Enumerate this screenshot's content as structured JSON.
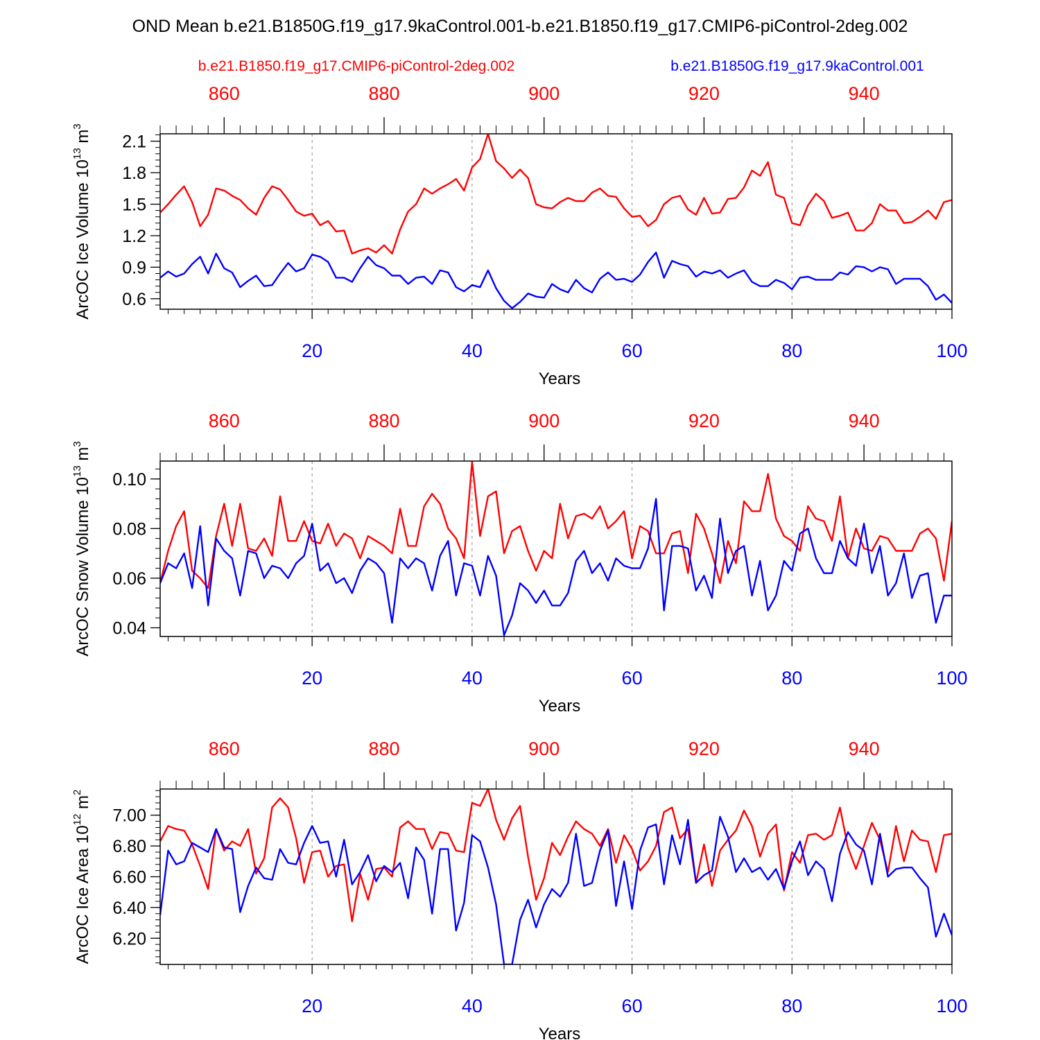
{
  "title": "OND Mean b.e21.B1850G.f19_g17.9kaControl.001-b.e21.B1850.f19_g17.CMIP6-piControl-2deg.002",
  "colors": {
    "red": "#ff0000",
    "blue": "#0000ff",
    "axis": "#000000",
    "grid": "#888888"
  },
  "chart_data": [
    {
      "type": "line",
      "ylabel": "ArcOC Ice Volume 10",
      "ylabel_sup": "13",
      "ylabel_unit": " m",
      "ylabel_unit_sup": "3",
      "xlabel": "Years",
      "ylim": [
        0.5,
        2.17
      ],
      "yticks": [
        0.6,
        0.9,
        1.2,
        1.5,
        1.8,
        2.1
      ],
      "yticklabels": [
        "0.6",
        "0.9",
        "1.2",
        "1.5",
        "1.8",
        "2.1"
      ],
      "yminor_step": 0.06,
      "xlim": [
        1,
        100
      ],
      "xticks": [
        20,
        40,
        60,
        80,
        100
      ],
      "xticklabels": [
        "20",
        "40",
        "60",
        "80",
        "100"
      ],
      "top_xticks": [
        860,
        880,
        900,
        920,
        940
      ],
      "top_xticklabels": [
        "860",
        "880",
        "900",
        "920",
        "940"
      ],
      "top_offset": 851,
      "grid_x": [
        20,
        40,
        60,
        80
      ],
      "legend": [
        "b.e21.B1850.f19_g17.CMIP6-piControl-2deg.002",
        "b.e21.B1850G.f19_g17.9kaControl.001"
      ],
      "series": [
        {
          "name": "b.e21.B1850.f19_g17.CMIP6-piControl-2deg.002",
          "color": "red",
          "values": [
            1.42,
            1.5,
            1.59,
            1.67,
            1.52,
            1.29,
            1.4,
            1.65,
            1.63,
            1.58,
            1.54,
            1.46,
            1.4,
            1.56,
            1.67,
            1.64,
            1.54,
            1.43,
            1.39,
            1.41,
            1.3,
            1.34,
            1.24,
            1.25,
            1.03,
            1.06,
            1.08,
            1.04,
            1.11,
            1.03,
            1.26,
            1.43,
            1.5,
            1.65,
            1.6,
            1.65,
            1.69,
            1.74,
            1.63,
            1.85,
            1.93,
            2.17,
            1.91,
            1.84,
            1.75,
            1.83,
            1.75,
            1.5,
            1.47,
            1.46,
            1.52,
            1.56,
            1.53,
            1.53,
            1.61,
            1.65,
            1.58,
            1.57,
            1.46,
            1.38,
            1.39,
            1.29,
            1.35,
            1.5,
            1.56,
            1.58,
            1.45,
            1.4,
            1.56,
            1.41,
            1.42,
            1.55,
            1.56,
            1.66,
            1.82,
            1.77,
            1.9,
            1.59,
            1.56,
            1.32,
            1.3,
            1.49,
            1.6,
            1.53,
            1.37,
            1.39,
            1.42,
            1.25,
            1.25,
            1.32,
            1.5,
            1.44,
            1.44,
            1.32,
            1.33,
            1.38,
            1.44,
            1.36,
            1.52,
            1.54
          ]
        },
        {
          "name": "b.e21.B1850G.f19_g17.9kaControl.001",
          "color": "blue",
          "values": [
            0.8,
            0.86,
            0.81,
            0.84,
            0.93,
            1.0,
            0.84,
            1.03,
            0.89,
            0.85,
            0.71,
            0.77,
            0.82,
            0.72,
            0.73,
            0.84,
            0.94,
            0.86,
            0.89,
            1.02,
            1.0,
            0.95,
            0.8,
            0.8,
            0.76,
            0.89,
            1.0,
            0.92,
            0.89,
            0.82,
            0.82,
            0.74,
            0.8,
            0.81,
            0.74,
            0.87,
            0.85,
            0.71,
            0.67,
            0.73,
            0.71,
            0.87,
            0.7,
            0.58,
            0.51,
            0.57,
            0.65,
            0.62,
            0.61,
            0.74,
            0.69,
            0.66,
            0.78,
            0.7,
            0.66,
            0.79,
            0.85,
            0.78,
            0.79,
            0.76,
            0.83,
            0.95,
            1.04,
            0.8,
            0.96,
            0.93,
            0.91,
            0.81,
            0.86,
            0.84,
            0.87,
            0.8,
            0.84,
            0.87,
            0.76,
            0.72,
            0.72,
            0.78,
            0.75,
            0.69,
            0.8,
            0.81,
            0.78,
            0.78,
            0.78,
            0.85,
            0.83,
            0.91,
            0.9,
            0.86,
            0.9,
            0.88,
            0.74,
            0.79,
            0.79,
            0.79,
            0.72,
            0.59,
            0.64,
            0.56
          ]
        }
      ]
    },
    {
      "type": "line",
      "ylabel": "ArcOC Snow Volume 10",
      "ylabel_sup": "13",
      "ylabel_unit": " m",
      "ylabel_unit_sup": "3",
      "xlabel": "Years",
      "ylim": [
        0.0365,
        0.1072
      ],
      "yticks": [
        0.04,
        0.06,
        0.08,
        0.1
      ],
      "yticklabels": [
        "0.04",
        "0.06",
        "0.08",
        "0.10"
      ],
      "yminor_step": 0.004,
      "xlim": [
        1,
        100
      ],
      "xticks": [
        20,
        40,
        60,
        80,
        100
      ],
      "xticklabels": [
        "20",
        "40",
        "60",
        "80",
        "100"
      ],
      "top_xticks": [
        860,
        880,
        900,
        920,
        940
      ],
      "top_xticklabels": [
        "860",
        "880",
        "900",
        "920",
        "940"
      ],
      "top_offset": 851,
      "grid_x": [
        20,
        40,
        60,
        80
      ],
      "series": [
        {
          "name": "b.e21.B1850.f19_g17.CMIP6-piControl-2deg.002",
          "color": "red",
          "values": [
            0.058,
            0.071,
            0.081,
            0.087,
            0.063,
            0.06,
            0.056,
            0.077,
            0.09,
            0.073,
            0.09,
            0.072,
            0.071,
            0.076,
            0.069,
            0.093,
            0.075,
            0.075,
            0.083,
            0.075,
            0.074,
            0.082,
            0.073,
            0.078,
            0.076,
            0.068,
            0.077,
            0.075,
            0.073,
            0.07,
            0.088,
            0.073,
            0.073,
            0.089,
            0.094,
            0.09,
            0.08,
            0.076,
            0.068,
            0.107,
            0.077,
            0.093,
            0.095,
            0.07,
            0.079,
            0.081,
            0.071,
            0.063,
            0.071,
            0.068,
            0.09,
            0.076,
            0.085,
            0.086,
            0.084,
            0.089,
            0.08,
            0.083,
            0.087,
            0.068,
            0.081,
            0.079,
            0.07,
            0.07,
            0.078,
            0.079,
            0.062,
            0.086,
            0.08,
            0.07,
            0.058,
            0.075,
            0.066,
            0.091,
            0.087,
            0.087,
            0.102,
            0.084,
            0.077,
            0.075,
            0.071,
            0.089,
            0.084,
            0.083,
            0.075,
            0.093,
            0.068,
            0.08,
            0.072,
            0.071,
            0.077,
            0.076,
            0.071,
            0.071,
            0.071,
            0.078,
            0.08,
            0.076,
            0.059,
            0.083
          ]
        },
        {
          "name": "b.e21.B1850G.f19_g17.9kaControl.001",
          "color": "blue",
          "values": [
            0.058,
            0.066,
            0.064,
            0.07,
            0.056,
            0.081,
            0.049,
            0.076,
            0.071,
            0.068,
            0.053,
            0.071,
            0.07,
            0.06,
            0.065,
            0.064,
            0.06,
            0.066,
            0.069,
            0.082,
            0.063,
            0.066,
            0.058,
            0.06,
            0.054,
            0.063,
            0.068,
            0.066,
            0.062,
            0.042,
            0.068,
            0.064,
            0.068,
            0.066,
            0.055,
            0.069,
            0.075,
            0.053,
            0.066,
            0.065,
            0.053,
            0.069,
            0.061,
            0.037,
            0.045,
            0.058,
            0.055,
            0.05,
            0.055,
            0.049,
            0.049,
            0.054,
            0.067,
            0.071,
            0.062,
            0.066,
            0.059,
            0.068,
            0.065,
            0.064,
            0.064,
            0.072,
            0.092,
            0.047,
            0.073,
            0.073,
            0.072,
            0.055,
            0.061,
            0.052,
            0.084,
            0.062,
            0.071,
            0.073,
            0.053,
            0.067,
            0.047,
            0.053,
            0.067,
            0.063,
            0.078,
            0.08,
            0.068,
            0.062,
            0.062,
            0.075,
            0.068,
            0.065,
            0.082,
            0.062,
            0.073,
            0.053,
            0.058,
            0.07,
            0.052,
            0.061,
            0.062,
            0.042,
            0.053,
            0.053
          ]
        }
      ]
    },
    {
      "type": "line",
      "ylabel": "ArcOC Ice Area 10",
      "ylabel_sup": "12",
      "ylabel_unit": " m",
      "ylabel_unit_sup": "2",
      "xlabel": "Years",
      "ylim": [
        6.03,
        7.17
      ],
      "yticks": [
        6.2,
        6.4,
        6.6,
        6.8,
        7.0
      ],
      "yticklabels": [
        "6.20",
        "6.40",
        "6.60",
        "6.80",
        "7.00"
      ],
      "yminor_step": 0.04,
      "xlim": [
        1,
        100
      ],
      "xticks": [
        20,
        40,
        60,
        80,
        100
      ],
      "xticklabels": [
        "20",
        "40",
        "60",
        "80",
        "100"
      ],
      "top_xticks": [
        860,
        880,
        900,
        920,
        940
      ],
      "top_xticklabels": [
        "860",
        "880",
        "900",
        "920",
        "940"
      ],
      "top_offset": 851,
      "grid_x": [
        20,
        40,
        60,
        80
      ],
      "series": [
        {
          "name": "b.e21.B1850.f19_g17.CMIP6-piControl-2deg.002",
          "color": "red",
          "values": [
            6.83,
            6.93,
            6.91,
            6.9,
            6.81,
            6.67,
            6.52,
            6.91,
            6.77,
            6.83,
            6.8,
            6.91,
            6.62,
            6.72,
            7.05,
            7.11,
            7.05,
            6.85,
            6.56,
            6.76,
            6.77,
            6.6,
            6.67,
            6.68,
            6.31,
            6.62,
            6.45,
            6.65,
            6.66,
            6.6,
            6.92,
            6.96,
            6.91,
            6.91,
            6.78,
            6.89,
            6.88,
            6.77,
            6.76,
            7.08,
            7.06,
            7.17,
            6.97,
            6.84,
            6.98,
            7.06,
            6.73,
            6.45,
            6.59,
            6.82,
            6.74,
            6.86,
            6.96,
            6.91,
            6.88,
            6.8,
            6.91,
            6.69,
            6.87,
            6.78,
            6.64,
            6.7,
            6.8,
            7.02,
            7.05,
            6.85,
            6.91,
            6.56,
            6.81,
            6.54,
            6.77,
            6.84,
            6.9,
            7.03,
            6.93,
            6.73,
            6.88,
            6.94,
            6.51,
            6.76,
            6.69,
            6.87,
            6.88,
            6.84,
            6.87,
            7.05,
            6.79,
            6.65,
            6.8,
            6.95,
            6.84,
            6.63,
            6.93,
            6.7,
            6.9,
            6.84,
            6.83,
            6.63,
            6.87,
            6.88
          ]
        },
        {
          "name": "b.e21.B1850G.f19_g17.9kaControl.001",
          "color": "blue",
          "values": [
            6.35,
            6.77,
            6.68,
            6.7,
            6.82,
            6.79,
            6.76,
            6.91,
            6.79,
            6.78,
            6.37,
            6.54,
            6.66,
            6.59,
            6.58,
            6.78,
            6.69,
            6.68,
            6.82,
            6.93,
            6.82,
            6.83,
            6.6,
            6.84,
            6.55,
            6.63,
            6.74,
            6.57,
            6.67,
            6.63,
            6.69,
            6.46,
            6.79,
            6.71,
            6.36,
            6.78,
            6.78,
            6.25,
            6.43,
            6.87,
            6.83,
            6.66,
            6.42,
            6.03,
            6.03,
            6.32,
            6.45,
            6.27,
            6.42,
            6.52,
            6.47,
            6.56,
            6.88,
            6.54,
            6.56,
            6.77,
            6.9,
            6.41,
            6.7,
            6.39,
            6.77,
            6.92,
            6.94,
            6.55,
            6.87,
            6.68,
            6.97,
            6.56,
            6.61,
            6.64,
            6.99,
            6.86,
            6.63,
            6.72,
            6.63,
            6.66,
            6.58,
            6.65,
            6.52,
            6.7,
            6.83,
            6.61,
            6.7,
            6.65,
            6.44,
            6.75,
            6.89,
            6.81,
            6.77,
            6.55,
            6.88,
            6.6,
            6.65,
            6.66,
            6.66,
            6.59,
            6.53,
            6.21,
            6.36,
            6.22
          ]
        }
      ]
    }
  ]
}
